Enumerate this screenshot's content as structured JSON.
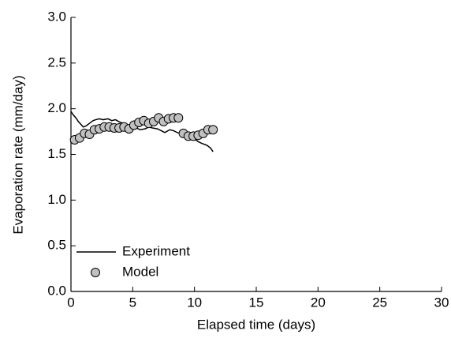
{
  "chart_data": {
    "type": "line",
    "x_label": "Elapsed time (days)",
    "y_label": "Evaporation rate (mm/day)",
    "xlim": [
      0,
      30
    ],
    "xticks": [
      0,
      5,
      10,
      15,
      20,
      25,
      30
    ],
    "ylim": [
      0,
      3
    ],
    "yticks": [
      {
        "value": 0,
        "label": "0.0"
      },
      0.5,
      {
        "value": 1,
        "label": "1.0"
      },
      1.5,
      {
        "value": 2,
        "label": "2.0"
      },
      2.5,
      {
        "value": 3,
        "label": "3.0"
      }
    ],
    "legend": "bottom-left",
    "series": [
      {
        "name": "Experiment",
        "mode": "line",
        "color": "#000000",
        "x": [
          0,
          0.2,
          0.4,
          0.6,
          0.8,
          1.0,
          1.2,
          1.5,
          1.8,
          2.0,
          2.3,
          2.6,
          3.0,
          3.3,
          3.6,
          4.0,
          4.3,
          4.6,
          5.0,
          5.3,
          5.6,
          6.0,
          6.3,
          6.6,
          7.0,
          7.3,
          7.6,
          8.0,
          8.3,
          8.6,
          9.0,
          9.3,
          9.6,
          10.0,
          10.3,
          10.6,
          11.0,
          11.3,
          11.5
        ],
        "values": [
          1.97,
          1.93,
          1.9,
          1.86,
          1.83,
          1.8,
          1.81,
          1.84,
          1.87,
          1.88,
          1.89,
          1.88,
          1.89,
          1.87,
          1.88,
          1.85,
          1.84,
          1.82,
          1.8,
          1.79,
          1.77,
          1.78,
          1.8,
          1.79,
          1.78,
          1.76,
          1.74,
          1.77,
          1.76,
          1.74,
          1.72,
          1.7,
          1.68,
          1.67,
          1.64,
          1.62,
          1.6,
          1.57,
          1.53
        ]
      },
      {
        "name": "Model",
        "mode": "markers",
        "color": "#c0c0c0",
        "x": [
          0.3,
          0.7,
          1.1,
          1.5,
          1.9,
          2.3,
          2.7,
          3.1,
          3.5,
          3.9,
          4.3,
          4.7,
          5.1,
          5.5,
          5.9,
          6.3,
          6.7,
          7.1,
          7.5,
          7.9,
          8.3,
          8.7,
          9.1,
          9.5,
          9.9,
          10.3,
          10.7,
          11.1,
          11.5
        ],
        "values": [
          1.66,
          1.68,
          1.73,
          1.72,
          1.77,
          1.78,
          1.8,
          1.8,
          1.79,
          1.79,
          1.8,
          1.78,
          1.82,
          1.85,
          1.87,
          1.84,
          1.86,
          1.9,
          1.86,
          1.89,
          1.9,
          1.9,
          1.73,
          1.7,
          1.7,
          1.71,
          1.73,
          1.77,
          1.77
        ]
      }
    ]
  }
}
